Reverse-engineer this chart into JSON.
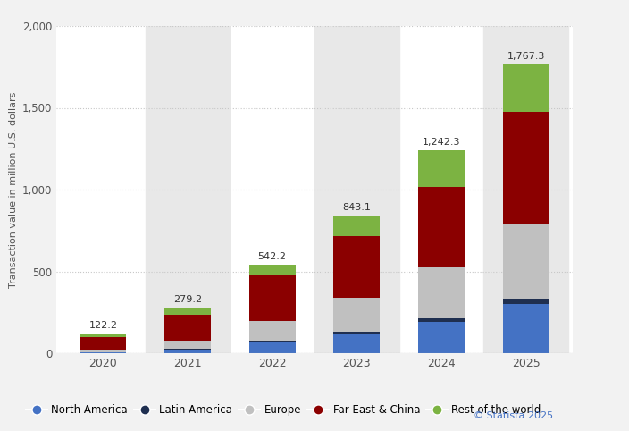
{
  "years": [
    "2020",
    "2021",
    "2022",
    "2023",
    "2024",
    "2025"
  ],
  "totals": [
    122.2,
    279.2,
    542.2,
    843.1,
    1242.3,
    1767.3
  ],
  "north_america": [
    5,
    25,
    70,
    120,
    195,
    300
  ],
  "latin_america": [
    2,
    4,
    8,
    12,
    20,
    35
  ],
  "europe": [
    18,
    50,
    120,
    210,
    310,
    460
  ],
  "far_east_china": [
    72,
    155,
    280,
    375,
    490,
    680
  ],
  "rest_of_world": [
    25.2,
    45.2,
    64.2,
    126.1,
    227.3,
    292.3
  ],
  "colors": {
    "North America": "#4472C4",
    "Latin America": "#1F2F50",
    "Europe": "#C0C0C0",
    "Far East & China": "#8B0000",
    "Rest of the world": "#7CB342"
  },
  "ylabel": "Transaction value in million U.S. dollars",
  "ylim": [
    0,
    2000
  ],
  "yticks": [
    0,
    500,
    1000,
    1500,
    2000
  ],
  "bg_color": "#f2f2f2",
  "plot_bg_color": "#ffffff",
  "shade_color": "#e8e8e8",
  "annotation_color": "#333333",
  "statista_text": "© Statista 2025",
  "statista_color": "#4472C4",
  "grid_color": "#c8c8c8",
  "tick_color": "#555555"
}
